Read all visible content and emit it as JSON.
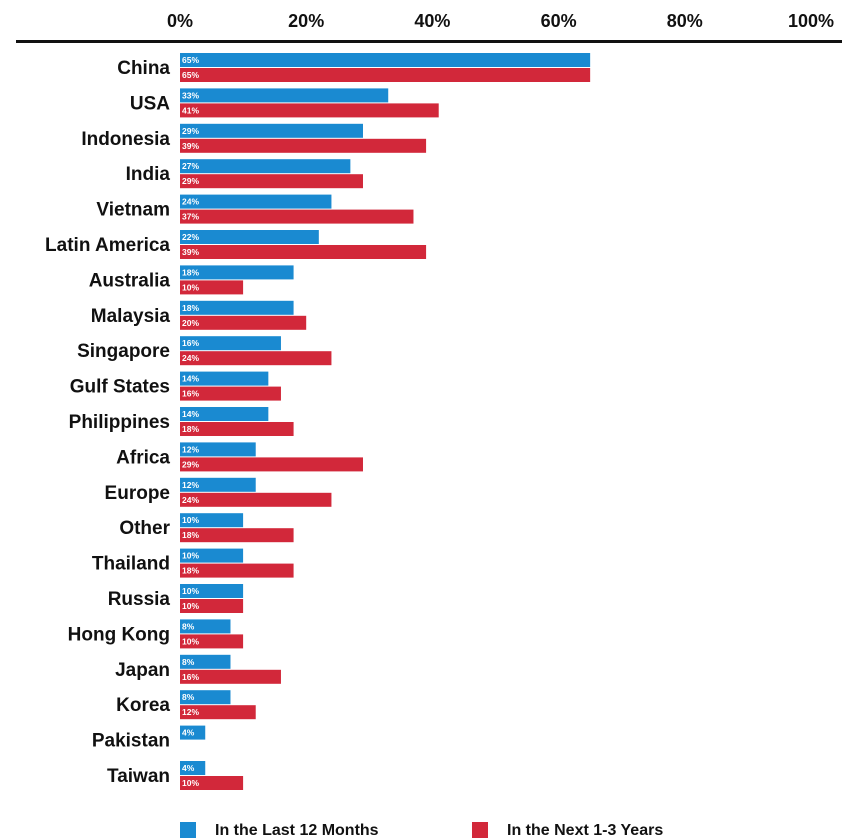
{
  "chart_data": {
    "type": "bar",
    "orientation": "horizontal",
    "title": "",
    "xlabel": "",
    "ylabel": "",
    "xlim": [
      0,
      100
    ],
    "x_ticks": [
      "0%",
      "20%",
      "40%",
      "60%",
      "80%",
      "100%"
    ],
    "tick_values": [
      0,
      20,
      40,
      60,
      80,
      100
    ],
    "axis_position": "top",
    "grid": false,
    "legend_position": "bottom",
    "categories": [
      "China",
      "USA",
      "Indonesia",
      "India",
      "Vietnam",
      "Latin America",
      "Australia",
      "Malaysia",
      "Singapore",
      "Gulf States",
      "Philippines",
      "Africa",
      "Europe",
      "Other",
      "Thailand",
      "Russia",
      "Hong Kong",
      "Japan",
      "Korea",
      "Pakistan",
      "Taiwan"
    ],
    "series": [
      {
        "name": "In the Last 12 Months",
        "color": "#1a8ad1",
        "values": [
          65,
          33,
          29,
          27,
          24,
          22,
          18,
          18,
          16,
          14,
          14,
          12,
          12,
          10,
          10,
          10,
          8,
          8,
          8,
          4,
          4
        ],
        "labels": [
          "65%",
          "33%",
          "29%",
          "27%",
          "24%",
          "22%",
          "18%",
          "18%",
          "16%",
          "14%",
          "14%",
          "12%",
          "12%",
          "10%",
          "10%",
          "10%",
          "8%",
          "8%",
          "8%",
          "4%",
          "4%"
        ]
      },
      {
        "name": "In the Next 1-3 Years",
        "color": "#d2283a",
        "values": [
          65,
          41,
          39,
          29,
          37,
          39,
          10,
          20,
          24,
          16,
          18,
          29,
          24,
          18,
          18,
          10,
          10,
          16,
          12,
          0,
          10
        ],
        "labels": [
          "65%",
          "41%",
          "39%",
          "29%",
          "37%",
          "39%",
          "10%",
          "20%",
          "24%",
          "16%",
          "18%",
          "29%",
          "24%",
          "18%",
          "18%",
          "10%",
          "10%",
          "16%",
          "12%",
          "",
          "10%"
        ]
      }
    ]
  }
}
